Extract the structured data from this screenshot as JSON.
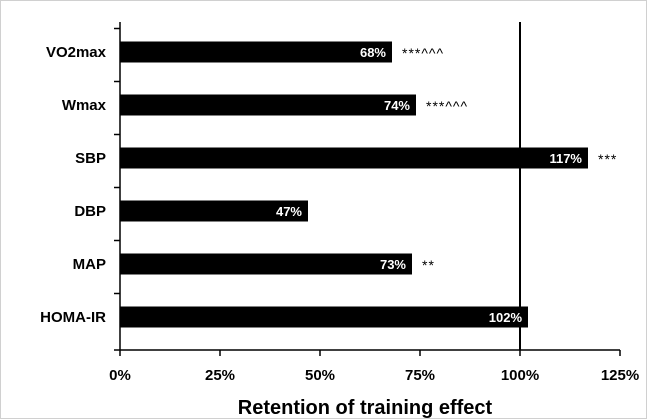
{
  "chart_data": {
    "type": "bar",
    "orientation": "horizontal",
    "categories": [
      "VO2max",
      "Wmax",
      "SBP",
      "DBP",
      "MAP",
      "HOMA-IR"
    ],
    "values": [
      68,
      74,
      117,
      47,
      73,
      102
    ],
    "data_labels": [
      "68%",
      "74%",
      "117%",
      "47%",
      "73%",
      "102%"
    ],
    "significance": [
      "***^^^",
      "***^^^",
      "***",
      "",
      "**",
      ""
    ],
    "xlabel": "Retention of training effect",
    "xlim": [
      0,
      125
    ],
    "xticks": [
      0,
      25,
      50,
      75,
      100,
      125
    ],
    "xtick_labels": [
      "0%",
      "25%",
      "50%",
      "75%",
      "100%",
      "125%"
    ],
    "reference_line": 100,
    "grid": false,
    "bar_color": "#000000",
    "label_color": "#ffffff"
  }
}
